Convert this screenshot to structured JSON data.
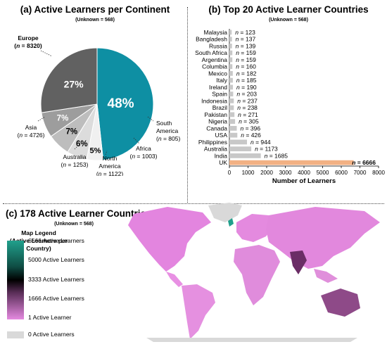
{
  "chart_data": [
    {
      "type": "pie",
      "title": "(a) Active Learners per Continent",
      "subtitle": "(Unknown = 568)",
      "slices": [
        {
          "name": "Europe",
          "value": 8320,
          "percent_label": "48%",
          "color": "#0e8fa3"
        },
        {
          "name": "South America",
          "value": 805,
          "percent_label": "5%",
          "color": "#f0f0f0"
        },
        {
          "name": "Africa",
          "value": 1003,
          "percent_label": "6%",
          "color": "#dcdcdc"
        },
        {
          "name": "North America",
          "value": 1122,
          "percent_label": "7%",
          "color": "#bdbdbd"
        },
        {
          "name": "Australia",
          "value": 1253,
          "percent_label": "7%",
          "color": "#9d9d9d"
        },
        {
          "name": "Asia",
          "value": 4726,
          "percent_label": "27%",
          "color": "#616161"
        }
      ],
      "labels": {
        "europe": [
          "Europe",
          "(n = 8320)"
        ],
        "south_america": [
          "South",
          "America",
          "(n = 805)"
        ],
        "africa": [
          "Africa",
          "(n = 1003)"
        ],
        "north_america": [
          "North",
          "America",
          "(n = 1122)"
        ],
        "australia": [
          "Australia",
          "(n = 1253)"
        ],
        "asia": [
          "Asia",
          "(n = 4726)"
        ]
      }
    },
    {
      "type": "bar",
      "orientation": "horizontal",
      "title": "(b) Top 20 Active Learner Countries",
      "subtitle": "(Unknown = 568)",
      "xlabel": "Number of Learners",
      "xlim": [
        0,
        8000
      ],
      "xticks": [
        0,
        1000,
        2000,
        3000,
        4000,
        5000,
        6000,
        7000,
        8000
      ],
      "categories": [
        "Malaysia",
        "Bangladesh",
        "Russia",
        "South Africa",
        "Argentina",
        "Columbia",
        "Mexico",
        "Italy",
        "Ireland",
        "Spain",
        "Indonesia",
        "Brazil",
        "Pakistan",
        "Nigeria",
        "Canada",
        "USA",
        "Philippines",
        "Australia",
        "India",
        "UK"
      ],
      "values": [
        123,
        137,
        139,
        159,
        159,
        160,
        182,
        185,
        190,
        203,
        237,
        238,
        271,
        305,
        396,
        426,
        944,
        1173,
        1685,
        6666
      ],
      "value_labels": [
        "n = 123",
        "n = 137",
        "n = 139",
        "n = 159",
        "n = 159",
        "n = 160",
        "n = 182",
        "n = 185",
        "n = 190",
        "n = 203",
        "n = 237",
        "n = 238",
        "n = 271",
        "n = 305",
        "n = 396",
        "n = 426",
        "n = 944",
        "n = 1173",
        "n = 1685",
        "n = 6666"
      ],
      "bar_color": "#c8c8c8",
      "highlight_color": "#f2b184"
    },
    {
      "type": "heatmap",
      "subtype": "choropleth-map",
      "title": "(c) 178 Active Learner Countries",
      "subtitle": "(Unknown = 568)",
      "legend_title": [
        "Map Legend",
        "(Active Learners per Country)"
      ],
      "legend_ticks": [
        "6666 Active Learners",
        "5000 Active Learners",
        "3333 Active Learners",
        "1666 Active Learners",
        "1 Active Learner"
      ],
      "legend_zero": "0 Active Learners",
      "colors": {
        "max": "#21a08c",
        "mid": "#000000",
        "low": "#e58ae0",
        "zero": "#d9d9d9"
      }
    }
  ]
}
